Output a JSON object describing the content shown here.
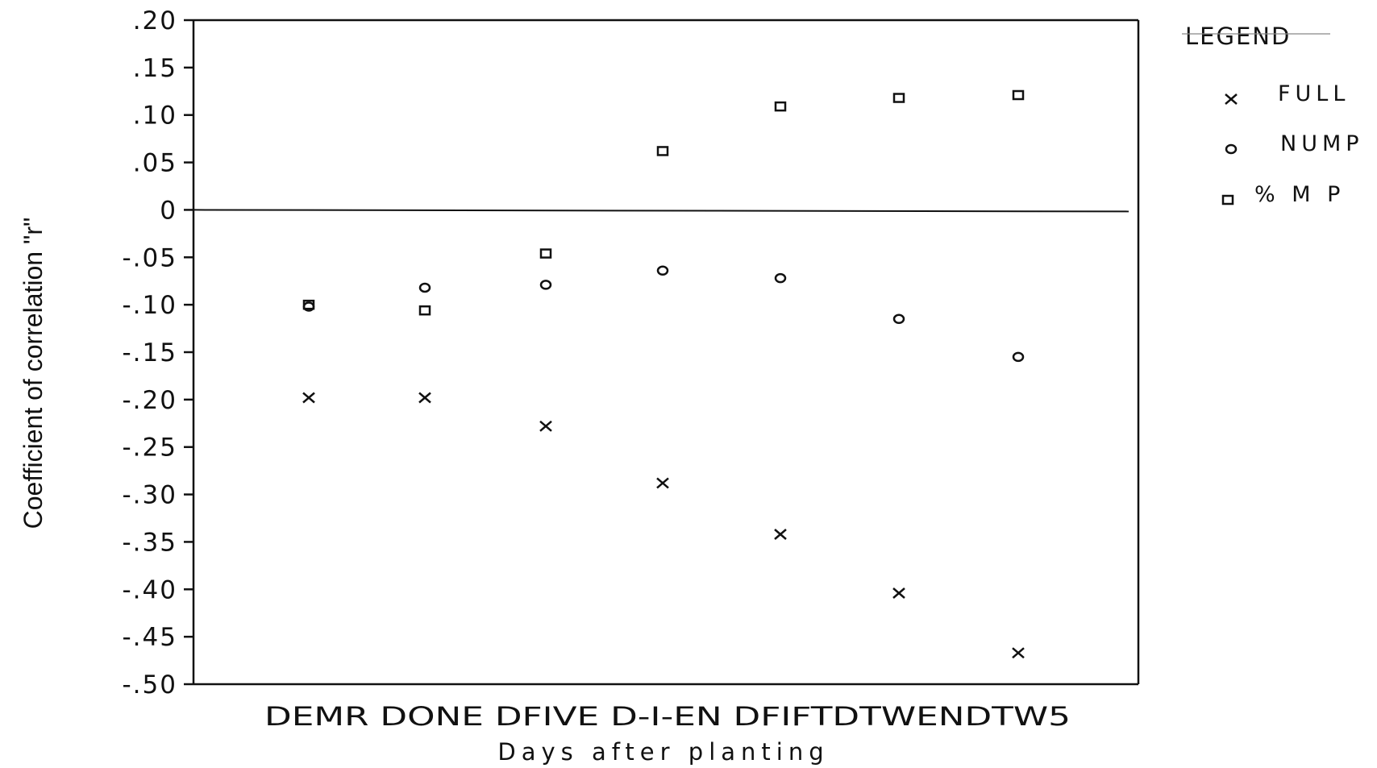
{
  "chart_data": {
    "type": "scatter",
    "categories": [
      "DEMR",
      "DONE",
      "DFIVE",
      "D-I-EN",
      "DFIFT",
      "DTWEN",
      "DTW5"
    ],
    "category_label_text": "DEMR DONE DFIVE D-I-EN DFIFTDTWENDTW5",
    "xlabel": "Days after planting",
    "ylabel": "Coefficient of correlation \"r\"",
    "ylim": [
      -0.5,
      0.2
    ],
    "y_ticks": [
      0.2,
      0.15,
      0.1,
      0.05,
      0,
      -0.05,
      -0.1,
      -0.15,
      -0.2,
      -0.25,
      -0.3,
      -0.35,
      -0.4,
      -0.45,
      -0.5
    ],
    "y_tick_labels": [
      ".20",
      ".15",
      ".10",
      ".05",
      "0",
      "-.05",
      "-.10",
      "-.15",
      "-.20",
      "-.25",
      "-.30",
      "-.35",
      "-.40",
      "-.45",
      "-.50"
    ],
    "reference_line_y": 0,
    "grid": false,
    "legend": {
      "title": "LEGEND",
      "position": "right"
    },
    "series": [
      {
        "name": "FULL",
        "marker": "x",
        "values": [
          -0.198,
          -0.198,
          -0.228,
          -0.288,
          -0.342,
          -0.404,
          -0.467
        ]
      },
      {
        "name": "NUMP",
        "marker": "circle",
        "values": [
          -0.102,
          -0.082,
          -0.079,
          -0.064,
          -0.072,
          -0.115,
          -0.155
        ]
      },
      {
        "name": "% M P",
        "marker": "square",
        "values": [
          -0.1,
          -0.106,
          -0.046,
          0.062,
          0.109,
          0.118,
          0.121
        ]
      }
    ]
  }
}
